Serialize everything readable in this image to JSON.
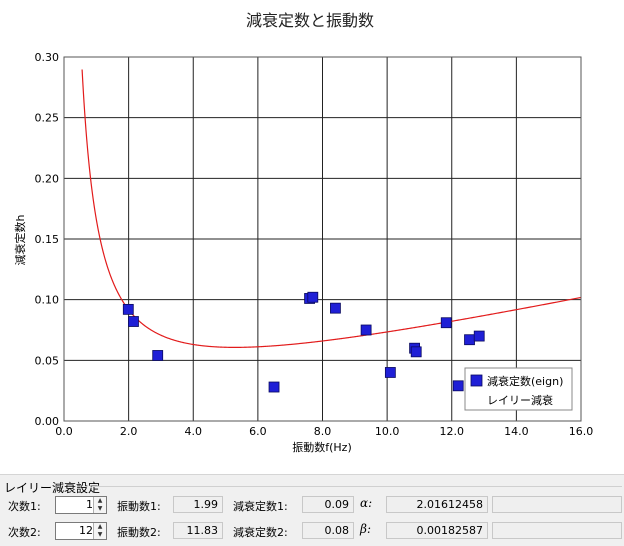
{
  "chart_data": {
    "type": "scatter",
    "title": "減衰定数と振動数",
    "xlabel": "振動数f(Hz)",
    "ylabel": "減衰定数h",
    "xlim": [
      0,
      16
    ],
    "ylim": [
      0,
      0.3
    ],
    "x_ticks": [
      "0.0",
      "2.0",
      "4.0",
      "6.0",
      "8.0",
      "10.0",
      "12.0",
      "14.0",
      "16.0"
    ],
    "y_ticks": [
      "0.00",
      "0.05",
      "0.10",
      "0.15",
      "0.20",
      "0.25",
      "0.30"
    ],
    "grid": true,
    "legend_position": "bottom-right",
    "series": [
      {
        "name": "減衰定数(eign)",
        "kind": "scatter",
        "color": "#1f1fd6",
        "x": [
          1.99,
          2.15,
          2.9,
          6.5,
          7.6,
          7.7,
          8.4,
          9.35,
          10.1,
          10.85,
          10.9,
          11.83,
          12.2,
          12.55,
          12.85
        ],
        "y": [
          0.092,
          0.082,
          0.054,
          0.028,
          0.101,
          0.102,
          0.093,
          0.075,
          0.04,
          0.06,
          0.057,
          0.081,
          0.029,
          0.067,
          0.07
        ]
      },
      {
        "name": "レイリー減衰",
        "kind": "line",
        "color": "#e21b1b",
        "alpha": 2.01612458,
        "beta": 0.00182587
      }
    ]
  },
  "settings": {
    "group_title": "レイリー減衰設定",
    "row1": {
      "order_label": "次数1:",
      "order_value": "1",
      "freq_label": "振動数1:",
      "freq_value": "1.99",
      "damp_label": "減衰定数1:",
      "damp_value": "0.09",
      "coef_label": "α:",
      "coef_value": "2.01612458"
    },
    "row2": {
      "order_label": "次数2:",
      "order_value": "12",
      "freq_label": "振動数2:",
      "freq_value": "11.83",
      "damp_label": "減衰定数2:",
      "damp_value": "0.08",
      "coef_label": "β:",
      "coef_value": "0.00182587"
    }
  }
}
